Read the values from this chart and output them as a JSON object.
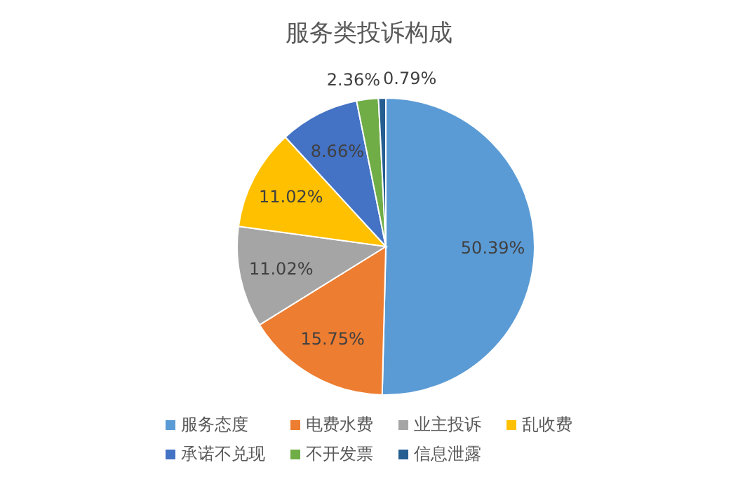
{
  "chart_data": {
    "type": "pie",
    "title": "服务类投诉构成",
    "categories": [
      "服务态度",
      "电费水费",
      "业主投诉",
      "乱收费",
      "承诺不兑现",
      "不开发票",
      "信息泄露"
    ],
    "values": [
      50.39,
      15.75,
      11.02,
      11.02,
      8.66,
      2.36,
      0.79
    ],
    "colors": [
      "#5b9bd5",
      "#ed7d31",
      "#a5a5a5",
      "#ffc000",
      "#4472c4",
      "#70ad47",
      "#255e91"
    ],
    "value_labels": [
      "50.39%",
      "15.75%",
      "11.02%",
      "11.02%",
      "8.66%",
      "2.36%",
      "0.79%"
    ],
    "legend": "bottom"
  }
}
